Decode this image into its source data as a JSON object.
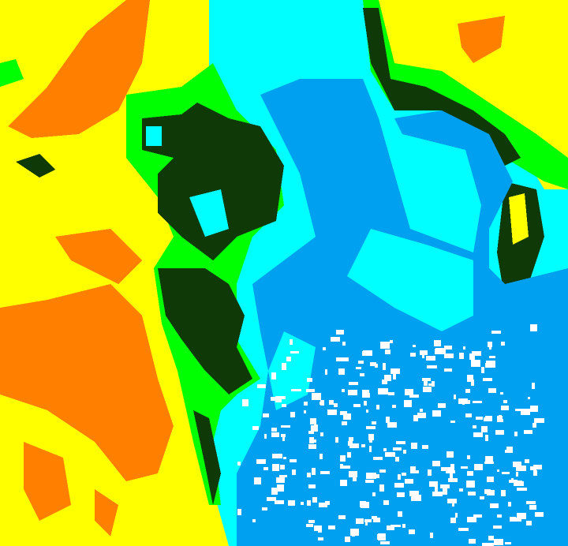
{
  "map": {
    "type": "classified raster",
    "class_colors": {
      "yellow": "#ffff00",
      "orange": "#ff8000",
      "green": "#00ff00",
      "dark_green": "#0f3a08",
      "cyan": "#00ffff",
      "blue": "#00a0f0",
      "white": "#ffffff"
    }
  }
}
